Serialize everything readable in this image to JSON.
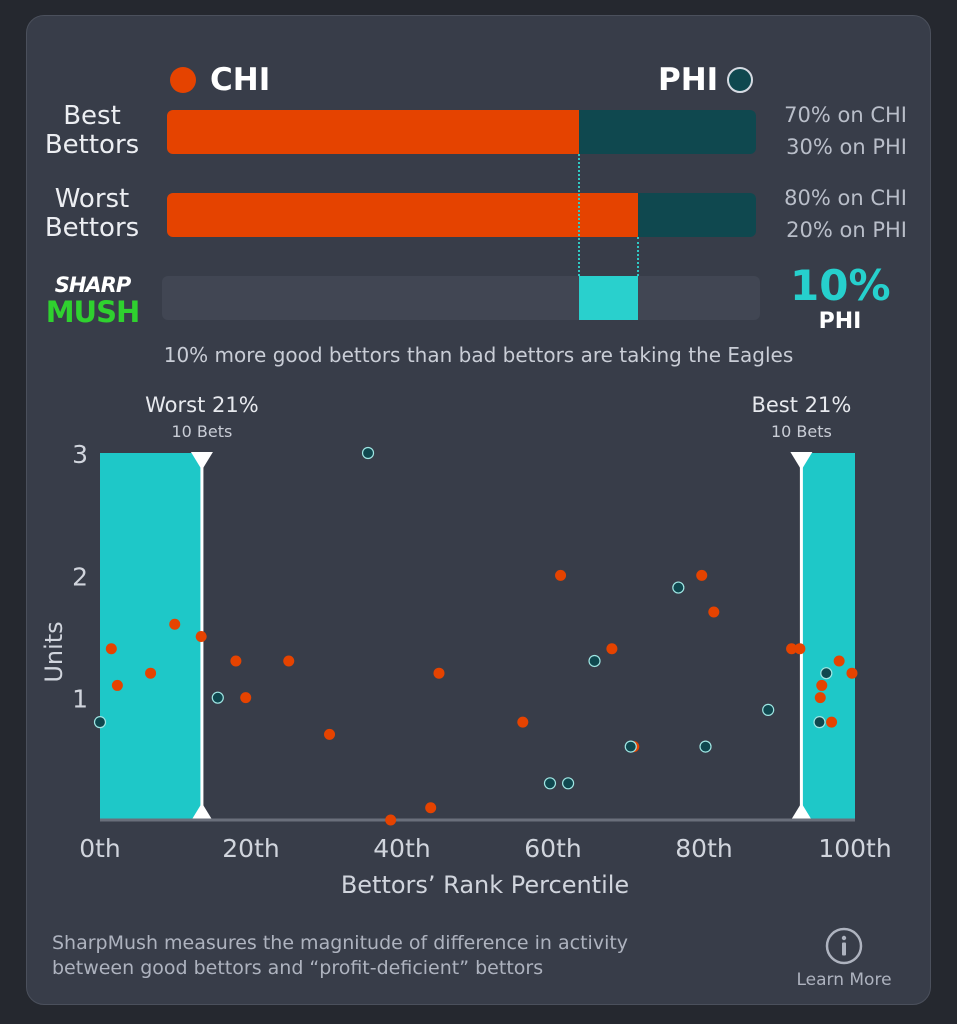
{
  "teams": {
    "left": {
      "name": "CHI",
      "color": "#e54300"
    },
    "right": {
      "name": "PHI",
      "color": "#0f484f"
    }
  },
  "comparison": {
    "rows": [
      {
        "label_line1": "Best",
        "label_line2": "Bettors",
        "chi_share": 0.7,
        "pct_left_text": "70% on CHI",
        "pct_right_text": "30% on PHI"
      },
      {
        "label_line1": "Worst",
        "label_line2": "Bettors",
        "chi_share": 0.8,
        "pct_left_text": "80% on CHI",
        "pct_right_text": "20% on PHI"
      }
    ],
    "difference": {
      "value_text": "10%",
      "team": "PHI",
      "color": "#29d0cd"
    }
  },
  "logo": {
    "line1": "SHARP",
    "line2": "MUSH"
  },
  "summary_text": "10% more good bettors than bad bettors are taking the Eagles",
  "chart_data": {
    "type": "scatter",
    "xlabel": "Bettors’ Rank Percentile",
    "ylabel": "Units",
    "xlim": [
      0,
      100
    ],
    "ylim": [
      0,
      3
    ],
    "x_ticks": [
      0,
      20,
      40,
      60,
      80,
      100
    ],
    "x_tick_labels": [
      "0th",
      "20th",
      "40th",
      "60th",
      "80th",
      "100th"
    ],
    "y_ticks": [
      1,
      2,
      3
    ],
    "y_tick_labels": [
      "1",
      "2",
      "3"
    ],
    "grid": false,
    "regions": [
      {
        "name": "worst",
        "label": "Worst 21%",
        "sublabel": "10 Bets",
        "x_start": 0,
        "x_end": 13.5,
        "color": "#1ec8c8"
      },
      {
        "name": "best",
        "label": "Best 21%",
        "sublabel": "10 Bets",
        "x_start": 92.9,
        "x_end": 100,
        "color": "#1ec8c8"
      }
    ],
    "series": [
      {
        "team": "CHI",
        "color": "#e54300",
        "points": [
          {
            "x": 1.5,
            "y": 1.4
          },
          {
            "x": 2.3,
            "y": 1.1
          },
          {
            "x": 6.7,
            "y": 1.2
          },
          {
            "x": 9.9,
            "y": 1.6
          },
          {
            "x": 13.4,
            "y": 1.5
          },
          {
            "x": 18.0,
            "y": 1.3
          },
          {
            "x": 19.3,
            "y": 1.0
          },
          {
            "x": 25.0,
            "y": 1.3
          },
          {
            "x": 30.4,
            "y": 0.7
          },
          {
            "x": 38.5,
            "y": 0.0
          },
          {
            "x": 43.8,
            "y": 0.1
          },
          {
            "x": 44.9,
            "y": 1.2
          },
          {
            "x": 56.0,
            "y": 0.8
          },
          {
            "x": 61.0,
            "y": 2.0
          },
          {
            "x": 67.8,
            "y": 1.4
          },
          {
            "x": 70.7,
            "y": 0.6
          },
          {
            "x": 79.7,
            "y": 2.0
          },
          {
            "x": 81.3,
            "y": 1.7
          },
          {
            "x": 91.6,
            "y": 1.4
          },
          {
            "x": 92.7,
            "y": 1.4
          },
          {
            "x": 95.6,
            "y": 1.1
          },
          {
            "x": 95.4,
            "y": 1.0
          },
          {
            "x": 96.9,
            "y": 0.8
          },
          {
            "x": 97.9,
            "y": 1.3
          },
          {
            "x": 99.6,
            "y": 1.2
          }
        ]
      },
      {
        "team": "PHI",
        "color": "#0f484f",
        "points": [
          {
            "x": 0.0,
            "y": 0.8
          },
          {
            "x": 15.6,
            "y": 1.0
          },
          {
            "x": 35.5,
            "y": 3.0
          },
          {
            "x": 59.6,
            "y": 0.3
          },
          {
            "x": 62.0,
            "y": 0.3
          },
          {
            "x": 65.5,
            "y": 1.3
          },
          {
            "x": 70.3,
            "y": 0.6
          },
          {
            "x": 76.6,
            "y": 1.9
          },
          {
            "x": 80.2,
            "y": 0.6
          },
          {
            "x": 88.5,
            "y": 0.9
          },
          {
            "x": 95.3,
            "y": 0.8
          },
          {
            "x": 96.2,
            "y": 1.2
          }
        ]
      }
    ]
  },
  "footer": {
    "description_line1": "SharpMush measures the magnitude of difference in activity",
    "description_line2": "between good bettors and “profit-deficient” bettors",
    "learn_more_label": "Learn More",
    "info_icon": "info-icon"
  }
}
